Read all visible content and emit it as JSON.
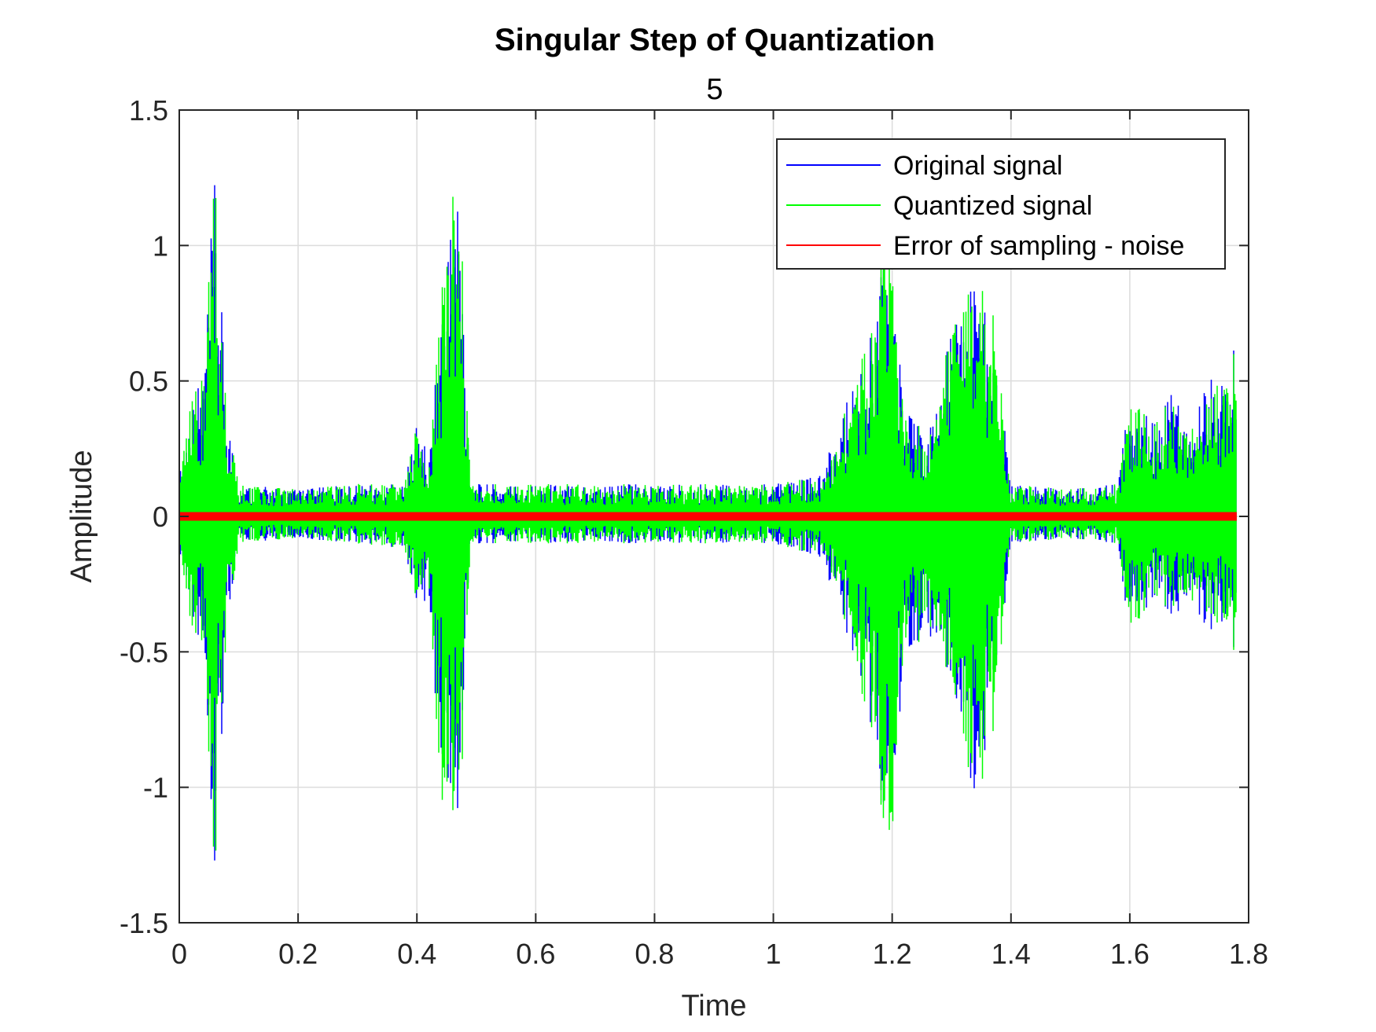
{
  "chart_data": {
    "type": "line",
    "title": "Singular Step of Quantization",
    "subtitle": "5",
    "xlabel": "Time",
    "ylabel": "Amplitude",
    "xlim": [
      0,
      1.8
    ],
    "ylim": [
      -1.5,
      1.5
    ],
    "xticks": [
      0,
      0.2,
      0.4,
      0.6,
      0.8,
      1,
      1.2,
      1.4,
      1.6,
      1.8
    ],
    "xtick_labels": [
      "0",
      "0.2",
      "0.4",
      "0.6",
      "0.8",
      "1",
      "1.2",
      "1.4",
      "1.6",
      "1.8"
    ],
    "yticks": [
      -1.5,
      -1,
      -0.5,
      0,
      0.5,
      1,
      1.5
    ],
    "ytick_labels": [
      "-1.5",
      "-1",
      "-0.5",
      "0",
      "0.5",
      "1",
      "1.5"
    ],
    "grid": true,
    "legend_position": "top-right",
    "series": [
      {
        "name": "Original signal",
        "color": "#0000ff",
        "x": [
          0,
          0.02,
          0.04,
          0.06,
          0.08,
          0.1,
          0.2,
          0.3,
          0.38,
          0.4,
          0.42,
          0.44,
          0.46,
          0.47,
          0.49,
          0.6,
          0.8,
          1.0,
          1.08,
          1.12,
          1.16,
          1.19,
          1.2,
          1.22,
          1.26,
          1.3,
          1.34,
          1.37,
          1.4,
          1.5,
          1.58,
          1.6,
          1.64,
          1.67,
          1.7,
          1.74,
          1.76,
          1.78
        ],
        "max": [
          0.15,
          0.42,
          0.55,
          1.25,
          0.4,
          0.12,
          0.1,
          0.12,
          0.12,
          0.38,
          0.2,
          0.8,
          1.2,
          1.35,
          0.12,
          0.12,
          0.12,
          0.12,
          0.15,
          0.4,
          0.65,
          1.05,
          0.95,
          0.4,
          0.3,
          0.7,
          0.9,
          0.75,
          0.12,
          0.1,
          0.12,
          0.45,
          0.35,
          0.5,
          0.3,
          0.55,
          0.5,
          0.7
        ],
        "min": [
          -0.12,
          -0.4,
          -0.5,
          -1.3,
          -0.45,
          -0.1,
          -0.08,
          -0.1,
          -0.12,
          -0.35,
          -0.3,
          -1.05,
          -1.1,
          -1.3,
          -0.1,
          -0.1,
          -0.1,
          -0.1,
          -0.15,
          -0.4,
          -0.75,
          -1.2,
          -1.25,
          -0.5,
          -0.45,
          -0.6,
          -1.1,
          -0.8,
          -0.1,
          -0.08,
          -0.1,
          -0.45,
          -0.3,
          -0.4,
          -0.3,
          -0.45,
          -0.4,
          -0.55
        ]
      },
      {
        "name": "Quantized signal",
        "color": "#00ff00",
        "x": [
          0,
          0.02,
          0.04,
          0.06,
          0.08,
          0.1,
          0.2,
          0.3,
          0.38,
          0.4,
          0.42,
          0.44,
          0.46,
          0.47,
          0.49,
          0.6,
          0.8,
          1.0,
          1.08,
          1.12,
          1.16,
          1.19,
          1.2,
          1.22,
          1.26,
          1.3,
          1.34,
          1.37,
          1.4,
          1.5,
          1.58,
          1.6,
          1.64,
          1.67,
          1.7,
          1.74,
          1.76,
          1.78
        ],
        "max": [
          0.15,
          0.42,
          0.55,
          1.26,
          0.4,
          0.12,
          0.1,
          0.12,
          0.12,
          0.38,
          0.2,
          0.8,
          1.2,
          1.38,
          0.12,
          0.12,
          0.12,
          0.12,
          0.15,
          0.4,
          0.65,
          1.05,
          0.95,
          0.4,
          0.3,
          0.7,
          0.92,
          0.75,
          0.12,
          0.1,
          0.12,
          0.45,
          0.35,
          0.5,
          0.3,
          0.55,
          0.5,
          0.7
        ],
        "min": [
          -0.12,
          -0.4,
          -0.5,
          -1.32,
          -0.45,
          -0.1,
          -0.08,
          -0.1,
          -0.12,
          -0.35,
          -0.3,
          -1.05,
          -1.1,
          -1.32,
          -0.1,
          -0.1,
          -0.1,
          -0.1,
          -0.15,
          -0.4,
          -0.75,
          -1.2,
          -1.26,
          -0.5,
          -0.45,
          -0.6,
          -1.12,
          -0.8,
          -0.1,
          -0.08,
          -0.1,
          -0.45,
          -0.3,
          -0.4,
          -0.3,
          -0.45,
          -0.4,
          -0.58
        ]
      },
      {
        "name": "Error of sampling - noise",
        "color": "#ff0000",
        "x": [
          0,
          1.78
        ],
        "max": [
          0.012,
          0.012
        ],
        "min": [
          -0.012,
          -0.012
        ]
      }
    ]
  }
}
